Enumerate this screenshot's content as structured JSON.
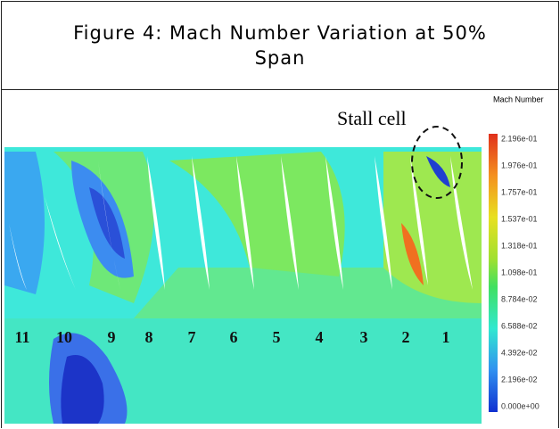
{
  "figure": {
    "title": "Figure 4: Mach Number Variation at 50% Span",
    "annotation": "Stall cell",
    "legend_title": "Mach Number",
    "legend_labels": [
      "2.196e-01",
      "1.976e-01",
      "1.757e-01",
      "1.537e-01",
      "1.318e-01",
      "1.098e-01",
      "8.784e-02",
      "6.588e-02",
      "4.392e-02",
      "2.196e-02",
      "0.000e+00"
    ],
    "blade_labels": [
      "11",
      "10",
      "9",
      "8",
      "7",
      "6",
      "5",
      "4",
      "3",
      "2",
      "1"
    ]
  }
}
